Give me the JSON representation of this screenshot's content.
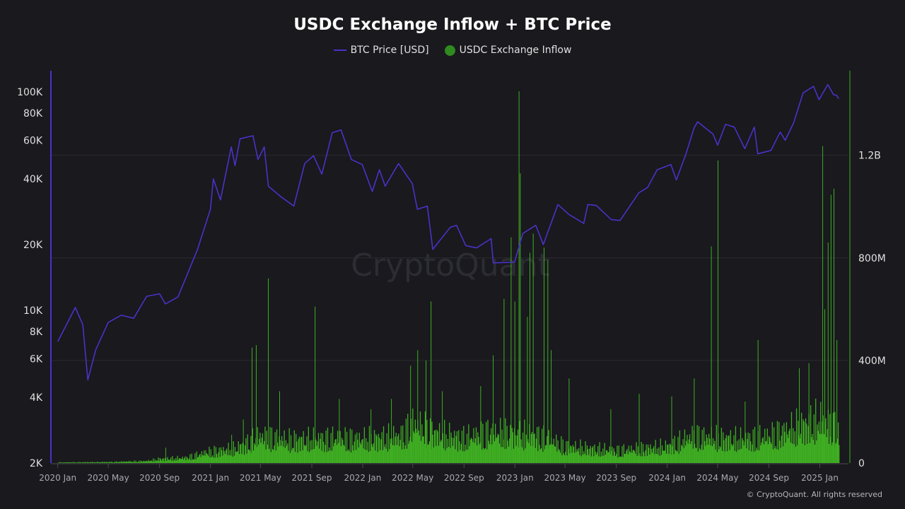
{
  "chart_data": {
    "type": "line+bar",
    "title": "USDC Exchange Inflow + BTC Price",
    "legend": {
      "placement": "top-center",
      "entries": [
        "BTC Price [USD]",
        "USDC Exchange Inflow"
      ]
    },
    "watermark": "CryptoQuant",
    "copyright": "© CryptoQuant. All rights reserved",
    "colors": {
      "btc": "#4a32c8",
      "inflow": "#3fae22",
      "background": "#19191e",
      "grid": "#2a2a30"
    },
    "x_axis": {
      "ticks": [
        "2020 Jan",
        "2020 May",
        "2020 Sep",
        "2021 Jan",
        "2021 May",
        "2021 Sep",
        "2022 Jan",
        "2022 May",
        "2022 Sep",
        "2023 Jan",
        "2023 May",
        "2023 Sep",
        "2024 Jan",
        "2024 May",
        "2024 Sep",
        "2025 Jan"
      ],
      "tick_dates": [
        "2020-01-01",
        "2020-05-01",
        "2020-09-01",
        "2021-01-01",
        "2021-05-01",
        "2021-09-01",
        "2022-01-01",
        "2022-05-01",
        "2022-09-01",
        "2023-01-01",
        "2023-05-01",
        "2023-09-01",
        "2024-01-01",
        "2024-05-01",
        "2024-09-01",
        "2025-01-01"
      ],
      "range": [
        "2019-12-24",
        "2025-02-25"
      ]
    },
    "y_left": {
      "scale": "log",
      "range": [
        2000,
        125000
      ],
      "ticks": [
        2000,
        4000,
        6000,
        8000,
        10000,
        20000,
        40000,
        60000,
        80000,
        100000
      ],
      "tick_labels": [
        "2K",
        "4K",
        "6K",
        "8K",
        "10K",
        "20K",
        "40K",
        "60K",
        "80K",
        "100K"
      ]
    },
    "y_right": {
      "scale": "linear",
      "range": [
        0,
        1530000000
      ],
      "ticks": [
        0,
        400000000,
        800000000,
        1200000000
      ],
      "tick_labels": [
        "0",
        "400M",
        "800M",
        "1.2B"
      ]
    },
    "grid": true,
    "series": [
      {
        "name": "BTC Price [USD]",
        "axis": "left",
        "type": "line",
        "points": [
          [
            "2020-01-01",
            7200
          ],
          [
            "2020-02-12",
            10300
          ],
          [
            "2020-03-01",
            8600
          ],
          [
            "2020-03-13",
            4800
          ],
          [
            "2020-04-01",
            6600
          ],
          [
            "2020-05-01",
            8800
          ],
          [
            "2020-06-01",
            9500
          ],
          [
            "2020-07-01",
            9200
          ],
          [
            "2020-08-01",
            11600
          ],
          [
            "2020-09-01",
            11900
          ],
          [
            "2020-09-15",
            10700
          ],
          [
            "2020-10-15",
            11500
          ],
          [
            "2020-11-01",
            13800
          ],
          [
            "2020-12-01",
            19000
          ],
          [
            "2021-01-01",
            29000
          ],
          [
            "2021-01-08",
            40000
          ],
          [
            "2021-01-25",
            32000
          ],
          [
            "2021-02-20",
            56000
          ],
          [
            "2021-03-01",
            46000
          ],
          [
            "2021-03-13",
            61000
          ],
          [
            "2021-04-13",
            63000
          ],
          [
            "2021-04-25",
            49000
          ],
          [
            "2021-05-10",
            56000
          ],
          [
            "2021-05-20",
            37000
          ],
          [
            "2021-06-20",
            33000
          ],
          [
            "2021-07-20",
            30000
          ],
          [
            "2021-08-15",
            47000
          ],
          [
            "2021-09-05",
            51000
          ],
          [
            "2021-09-25",
            42000
          ],
          [
            "2021-10-20",
            65000
          ],
          [
            "2021-11-10",
            67000
          ],
          [
            "2021-12-05",
            49000
          ],
          [
            "2021-12-31",
            46500
          ],
          [
            "2022-01-24",
            35000
          ],
          [
            "2022-02-10",
            44000
          ],
          [
            "2022-02-24",
            37000
          ],
          [
            "2022-03-28",
            47000
          ],
          [
            "2022-04-30",
            38000
          ],
          [
            "2022-05-12",
            29000
          ],
          [
            "2022-06-05",
            30000
          ],
          [
            "2022-06-18",
            19000
          ],
          [
            "2022-07-30",
            24000
          ],
          [
            "2022-08-14",
            24500
          ],
          [
            "2022-09-05",
            19800
          ],
          [
            "2022-10-01",
            19300
          ],
          [
            "2022-11-05",
            21300
          ],
          [
            "2022-11-10",
            16500
          ],
          [
            "2022-12-31",
            16600
          ],
          [
            "2023-01-20",
            22500
          ],
          [
            "2023-02-20",
            24500
          ],
          [
            "2023-03-10",
            20000
          ],
          [
            "2023-04-14",
            30500
          ],
          [
            "2023-05-10",
            27500
          ],
          [
            "2023-06-15",
            25000
          ],
          [
            "2023-06-25",
            30500
          ],
          [
            "2023-07-15",
            30200
          ],
          [
            "2023-08-20",
            26000
          ],
          [
            "2023-09-10",
            25800
          ],
          [
            "2023-10-25",
            34500
          ],
          [
            "2023-11-15",
            36500
          ],
          [
            "2023-12-08",
            44000
          ],
          [
            "2024-01-10",
            46500
          ],
          [
            "2024-01-23",
            39500
          ],
          [
            "2024-02-15",
            52000
          ],
          [
            "2024-03-05",
            68000
          ],
          [
            "2024-03-14",
            73000
          ],
          [
            "2024-04-20",
            64000
          ],
          [
            "2024-05-01",
            57000
          ],
          [
            "2024-05-20",
            71000
          ],
          [
            "2024-06-10",
            69000
          ],
          [
            "2024-07-05",
            55000
          ],
          [
            "2024-07-28",
            69000
          ],
          [
            "2024-08-05",
            52000
          ],
          [
            "2024-09-06",
            54000
          ],
          [
            "2024-09-28",
            65500
          ],
          [
            "2024-10-10",
            60000
          ],
          [
            "2024-10-30",
            72000
          ],
          [
            "2024-11-22",
            99000
          ],
          [
            "2024-12-17",
            106000
          ],
          [
            "2024-12-30",
            92000
          ],
          [
            "2025-01-20",
            108000
          ],
          [
            "2025-02-03",
            97000
          ],
          [
            "2025-02-10",
            96500
          ],
          [
            "2025-02-15",
            93000
          ]
        ]
      },
      {
        "name": "USDC Exchange Inflow",
        "axis": "right",
        "type": "bar",
        "baseline_monthly_M": [
          [
            "2020-01-01",
            3
          ],
          [
            "2020-05-01",
            5
          ],
          [
            "2020-08-01",
            10
          ],
          [
            "2020-09-01",
            20
          ],
          [
            "2020-11-01",
            25
          ],
          [
            "2021-01-01",
            55
          ],
          [
            "2021-03-01",
            70
          ],
          [
            "2021-05-01",
            130
          ],
          [
            "2021-07-01",
            110
          ],
          [
            "2021-09-01",
            115
          ],
          [
            "2021-11-01",
            120
          ],
          [
            "2022-01-01",
            115
          ],
          [
            "2022-04-01",
            130
          ],
          [
            "2022-05-01",
            190
          ],
          [
            "2022-07-01",
            140
          ],
          [
            "2022-09-01",
            120
          ],
          [
            "2022-11-01",
            150
          ],
          [
            "2023-01-01",
            140
          ],
          [
            "2023-03-01",
            130
          ],
          [
            "2023-05-01",
            80
          ],
          [
            "2023-07-01",
            70
          ],
          [
            "2023-09-01",
            60
          ],
          [
            "2023-11-01",
            70
          ],
          [
            "2024-01-01",
            80
          ],
          [
            "2024-03-01",
            130
          ],
          [
            "2024-05-01",
            120
          ],
          [
            "2024-07-01",
            115
          ],
          [
            "2024-09-01",
            130
          ],
          [
            "2024-11-01",
            170
          ],
          [
            "2025-01-01",
            210
          ],
          [
            "2025-02-15",
            160
          ]
        ],
        "spikes_M": [
          [
            "2020-09-15",
            60
          ],
          [
            "2020-12-20",
            50
          ],
          [
            "2021-02-20",
            110
          ],
          [
            "2021-03-20",
            170
          ],
          [
            "2021-04-10",
            450
          ],
          [
            "2021-04-20",
            460
          ],
          [
            "2021-05-19",
            720
          ],
          [
            "2021-06-15",
            280
          ],
          [
            "2021-09-08",
            610
          ],
          [
            "2021-11-05",
            250
          ],
          [
            "2022-01-20",
            210
          ],
          [
            "2022-03-10",
            250
          ],
          [
            "2022-04-25",
            380
          ],
          [
            "2022-05-12",
            440
          ],
          [
            "2022-06-01",
            400
          ],
          [
            "2022-06-13",
            630
          ],
          [
            "2022-07-10",
            280
          ],
          [
            "2022-10-10",
            300
          ],
          [
            "2022-11-09",
            420
          ],
          [
            "2022-12-05",
            640
          ],
          [
            "2022-12-22",
            880
          ],
          [
            "2022-12-31",
            630
          ],
          [
            "2023-01-10",
            1450
          ],
          [
            "2023-01-13",
            1130
          ],
          [
            "2023-01-30",
            570
          ],
          [
            "2023-02-05",
            820
          ],
          [
            "2023-02-13",
            895
          ],
          [
            "2023-03-11",
            840
          ],
          [
            "2023-03-20",
            790
          ],
          [
            "2023-03-28",
            440
          ],
          [
            "2023-05-10",
            330
          ],
          [
            "2023-08-18",
            210
          ],
          [
            "2023-10-25",
            270
          ],
          [
            "2024-01-11",
            260
          ],
          [
            "2024-03-05",
            330
          ],
          [
            "2024-04-15",
            845
          ],
          [
            "2024-05-01",
            1180
          ],
          [
            "2024-07-05",
            240
          ],
          [
            "2024-08-05",
            480
          ],
          [
            "2024-11-12",
            370
          ],
          [
            "2024-12-05",
            390
          ],
          [
            "2025-01-07",
            1236
          ],
          [
            "2025-01-12",
            600
          ],
          [
            "2025-01-20",
            860
          ],
          [
            "2025-01-27",
            1046
          ],
          [
            "2025-02-03",
            1070
          ],
          [
            "2025-02-10",
            480
          ]
        ]
      }
    ]
  }
}
